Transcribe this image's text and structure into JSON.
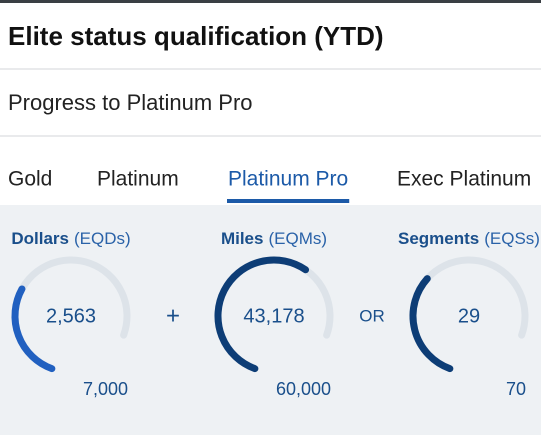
{
  "header": {
    "title": "Elite status qualification (YTD)"
  },
  "subheader": "Progress to Platinum Pro",
  "tabs": [
    "Gold",
    "Platinum",
    "Platinum Pro",
    "Exec Platinum"
  ],
  "active_tab": 2,
  "metrics": [
    {
      "name": "Dollars",
      "unit": "(EQDs)",
      "color": "#2160c0",
      "value": {
        "value": 2563,
        "label": "2,563"
      },
      "target": {
        "value": 7000,
        "label": "7,000"
      }
    },
    {
      "name": "Miles",
      "unit": "(EQMs)",
      "color": "#0d3d76",
      "value": {
        "value": 43178,
        "label": "43,178"
      },
      "target": {
        "value": 60000,
        "label": "60,000"
      }
    },
    {
      "name": "Segments",
      "unit": "(EQSs)",
      "color": "#0d3d76",
      "value": {
        "value": 29,
        "label": "29"
      },
      "target": {
        "value": 70,
        "label": "70"
      }
    }
  ],
  "operators": [
    "+",
    "OR"
  ]
}
